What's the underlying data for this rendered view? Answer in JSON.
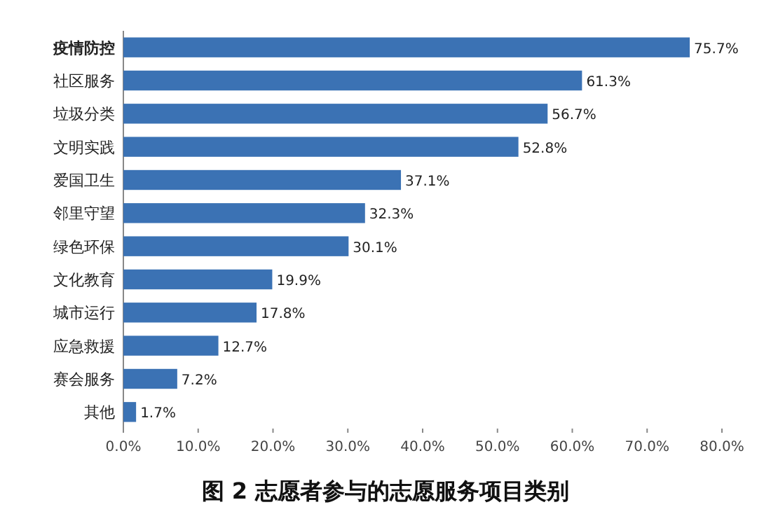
{
  "chart_data": {
    "type": "bar",
    "orientation": "horizontal",
    "title": "图 2 志愿者参与的志愿服务项目类别",
    "categories": [
      "疫情防控",
      "社区服务",
      "垃圾分类",
      "文明实践",
      "爱国卫生",
      "邻里守望",
      "绿色环保",
      "文化教育",
      "城市运行",
      "应急救援",
      "赛会服务",
      "其他"
    ],
    "values": [
      75.7,
      61.3,
      56.7,
      52.8,
      37.1,
      32.3,
      30.1,
      19.9,
      17.8,
      12.7,
      7.2,
      1.7
    ],
    "value_labels": [
      "75.7%",
      "61.3%",
      "56.7%",
      "52.8%",
      "37.1%",
      "32.3%",
      "30.1%",
      "19.9%",
      "17.8%",
      "12.7%",
      "7.2%",
      "1.7%"
    ],
    "color": "#3b72b4",
    "xlim": [
      0,
      80
    ],
    "xticks": [
      {
        "value": 0,
        "label": "0.0%"
      },
      {
        "value": 10,
        "label": "10.0%"
      },
      {
        "value": 20,
        "label": "20.0%"
      },
      {
        "value": 30,
        "label": "30.0%"
      },
      {
        "value": 40,
        "label": "40.0%"
      },
      {
        "value": 50,
        "label": "50.0%"
      },
      {
        "value": 60,
        "label": "60.0%"
      },
      {
        "value": 70,
        "label": "70.0%"
      },
      {
        "value": 80,
        "label": "80.0%"
      }
    ]
  }
}
